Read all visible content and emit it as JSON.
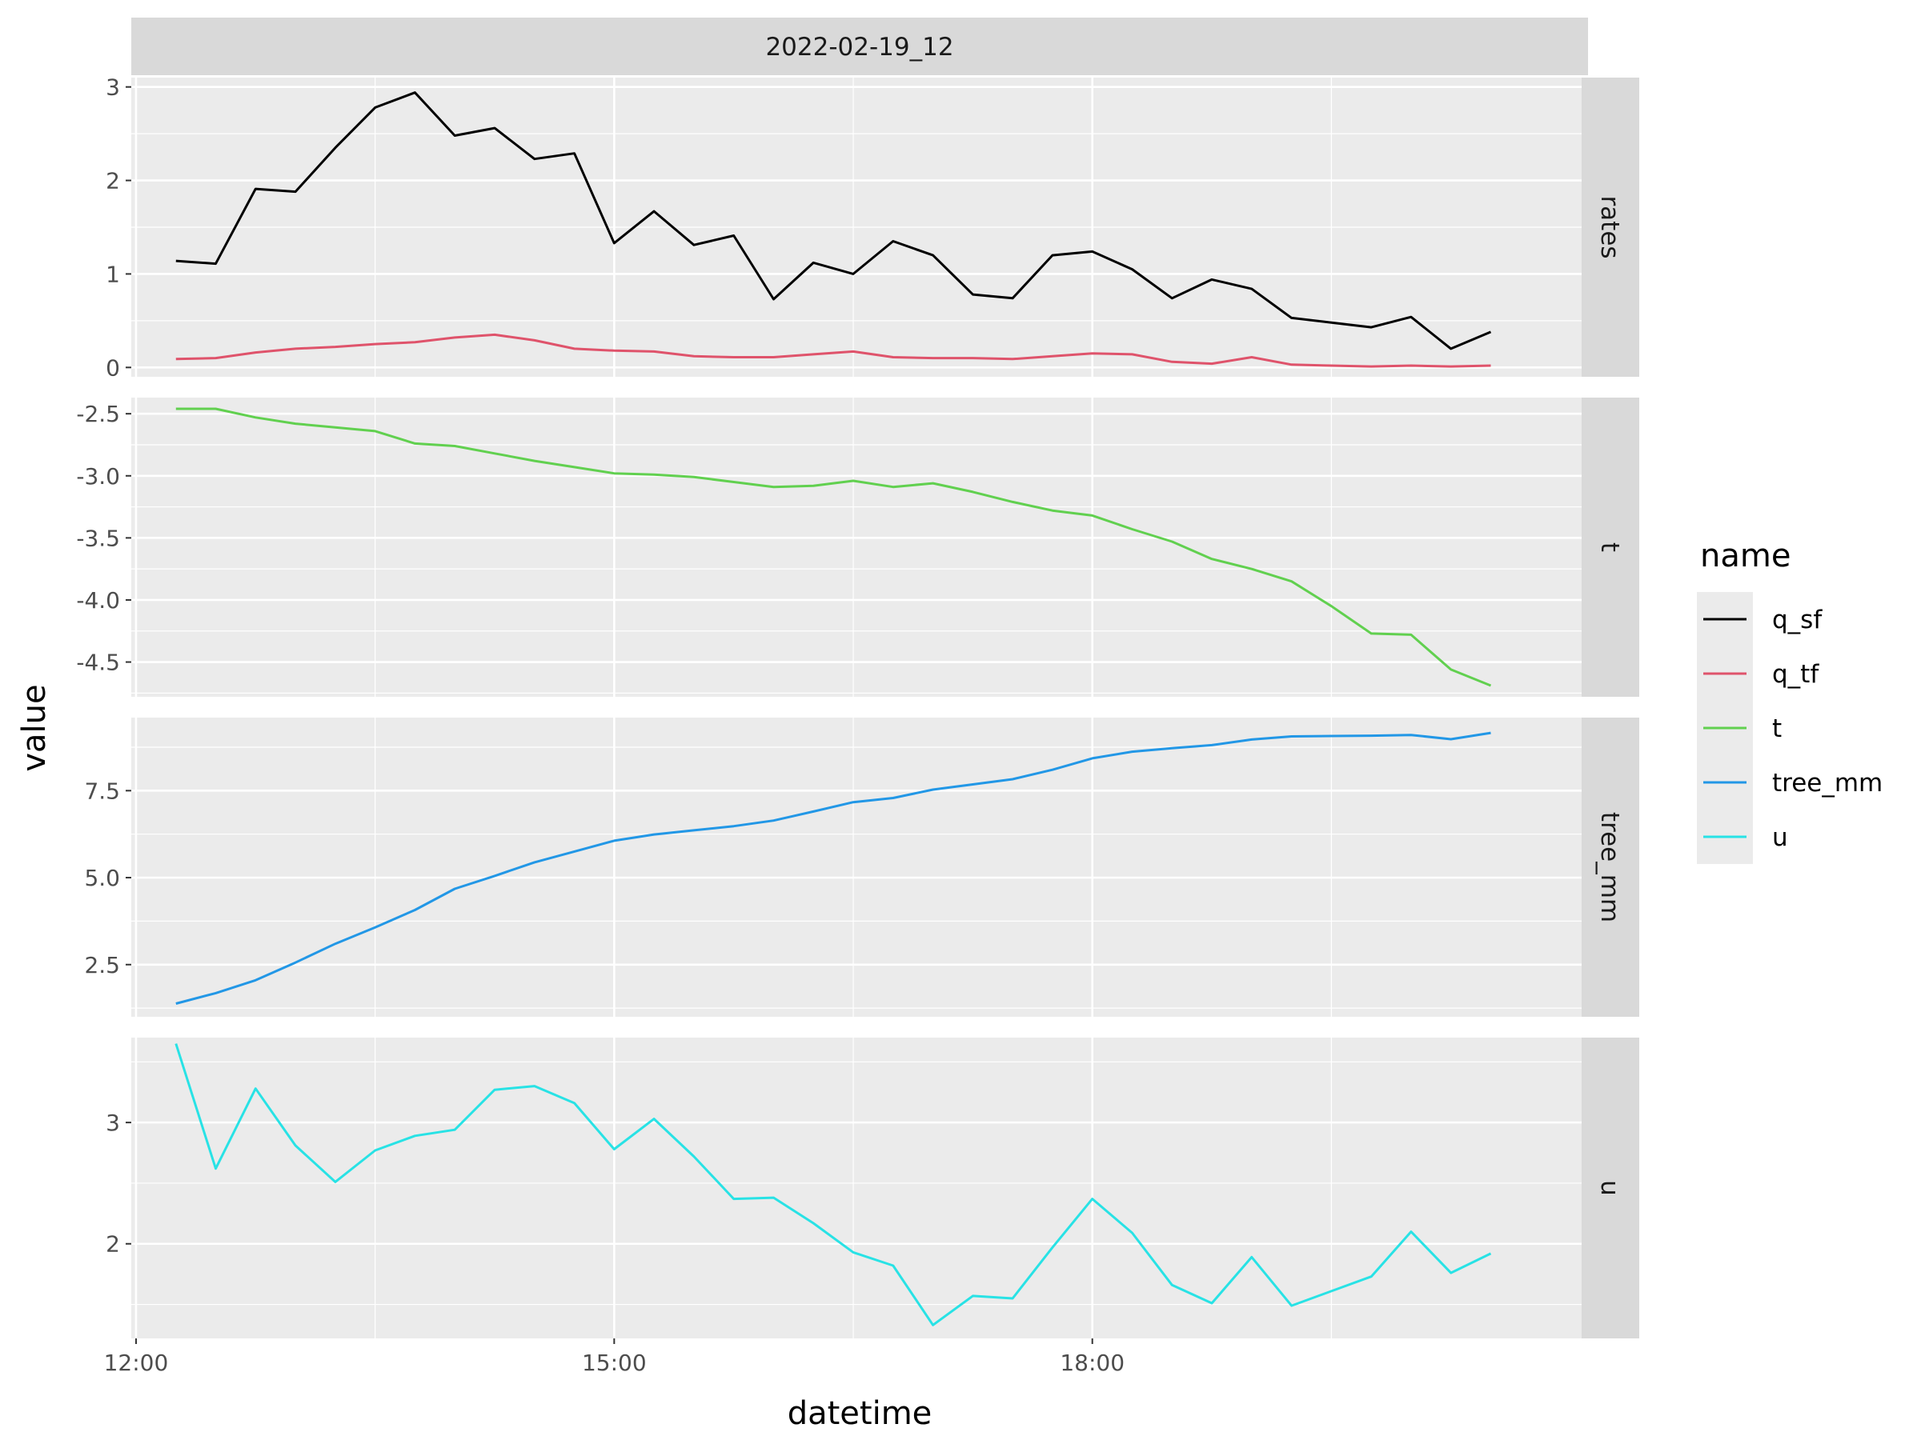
{
  "chart_data": {
    "type": "line",
    "facet_title": "2022-02-19_12",
    "xlabel": "datetime",
    "ylabel": "value",
    "x_ticks": [
      "12:00",
      "15:00",
      "18:00"
    ],
    "x_tick_hours": [
      12,
      15,
      18
    ],
    "x_range_hours": [
      11.97,
      21.07
    ],
    "x_hours": [
      12.25,
      12.5,
      12.75,
      13.0,
      13.25,
      13.5,
      13.75,
      14.0,
      14.25,
      14.5,
      14.75,
      15.0,
      15.25,
      15.5,
      15.75,
      16.0,
      16.25,
      16.5,
      16.75,
      17.0,
      17.25,
      17.5,
      17.75,
      18.0,
      18.25,
      18.5,
      18.75,
      19.0,
      19.25,
      19.5,
      19.75,
      20.0,
      20.25,
      20.5
    ],
    "legend": {
      "title": "name",
      "entries": [
        {
          "name": "q_sf",
          "color": "#000000"
        },
        {
          "name": "q_tf",
          "color": "#DF536B"
        },
        {
          "name": "t",
          "color": "#61D04F"
        },
        {
          "name": "tree_mm",
          "color": "#2297E6"
        },
        {
          "name": "u",
          "color": "#28E2E5"
        }
      ]
    },
    "panels": [
      {
        "strip": "rates",
        "ylim": [
          -0.1,
          3.1
        ],
        "y_ticks": [
          0,
          1,
          2,
          3
        ],
        "y_tick_labels": [
          "0",
          "1",
          "2",
          "3"
        ],
        "series": [
          {
            "name": "q_sf",
            "color": "#000000",
            "values": [
              1.14,
              1.11,
              1.91,
              1.88,
              2.35,
              2.78,
              2.94,
              2.48,
              2.56,
              2.23,
              2.29,
              1.33,
              1.67,
              1.31,
              1.41,
              0.73,
              1.12,
              1.0,
              1.35,
              1.2,
              0.78,
              0.74,
              1.2,
              1.24,
              1.05,
              0.74,
              0.94,
              0.84,
              0.53,
              0.48,
              0.43,
              0.54,
              0.2,
              0.38
            ]
          },
          {
            "name": "q_tf",
            "color": "#DF536B",
            "values": [
              0.09,
              0.1,
              0.16,
              0.2,
              0.22,
              0.25,
              0.27,
              0.32,
              0.35,
              0.29,
              0.2,
              0.18,
              0.17,
              0.12,
              0.11,
              0.11,
              0.14,
              0.17,
              0.11,
              0.1,
              0.1,
              0.09,
              0.12,
              0.15,
              0.14,
              0.06,
              0.04,
              0.11,
              0.03,
              0.02,
              0.01,
              0.02,
              0.01,
              0.02
            ]
          }
        ]
      },
      {
        "strip": "t",
        "ylim": [
          -4.78,
          -2.37
        ],
        "y_ticks": [
          -2.5,
          -3.0,
          -3.5,
          -4.0,
          -4.5
        ],
        "y_tick_labels": [
          "-2.5",
          "-3.0",
          "-3.5",
          "-4.0",
          "-4.5"
        ],
        "series": [
          {
            "name": "t",
            "color": "#61D04F",
            "values": [
              -2.46,
              -2.46,
              -2.53,
              -2.58,
              -2.61,
              -2.64,
              -2.74,
              -2.76,
              -2.82,
              -2.88,
              -2.93,
              -2.98,
              -2.99,
              -3.01,
              -3.05,
              -3.09,
              -3.08,
              -3.04,
              -3.09,
              -3.06,
              -3.13,
              -3.21,
              -3.28,
              -3.32,
              -3.43,
              -3.53,
              -3.67,
              -3.75,
              -3.85,
              -4.05,
              -4.27,
              -4.28,
              -4.56,
              -4.69
            ]
          }
        ]
      },
      {
        "strip": "tree_mm",
        "ylim": [
          1.0,
          9.6
        ],
        "y_ticks": [
          2.5,
          5.0,
          7.5
        ],
        "y_tick_labels": [
          "2.5",
          "5.0",
          "7.5"
        ],
        "series": [
          {
            "name": "tree_mm",
            "color": "#2297E6",
            "values": [
              1.38,
              1.68,
              2.05,
              2.56,
              3.1,
              3.57,
              4.07,
              4.68,
              5.05,
              5.44,
              5.75,
              6.06,
              6.24,
              6.36,
              6.48,
              6.64,
              6.9,
              7.17,
              7.29,
              7.53,
              7.68,
              7.83,
              8.1,
              8.43,
              8.62,
              8.72,
              8.81,
              8.97,
              9.06,
              9.07,
              9.08,
              9.1,
              8.98,
              9.16
            ]
          }
        ]
      },
      {
        "strip": "u",
        "ylim": [
          1.22,
          3.7
        ],
        "y_ticks": [
          2,
          3
        ],
        "y_tick_labels": [
          "2",
          "3"
        ],
        "series": [
          {
            "name": "u",
            "color": "#28E2E5",
            "values": [
              3.65,
              2.62,
              3.28,
              2.81,
              2.51,
              2.77,
              2.89,
              2.94,
              3.27,
              3.3,
              3.16,
              2.78,
              3.03,
              2.72,
              2.37,
              2.38,
              2.17,
              1.93,
              1.82,
              1.33,
              1.57,
              1.55,
              1.97,
              2.37,
              2.09,
              1.66,
              1.51,
              1.89,
              1.49,
              1.61,
              1.73,
              2.1,
              1.76,
              1.92
            ]
          }
        ]
      }
    ]
  }
}
